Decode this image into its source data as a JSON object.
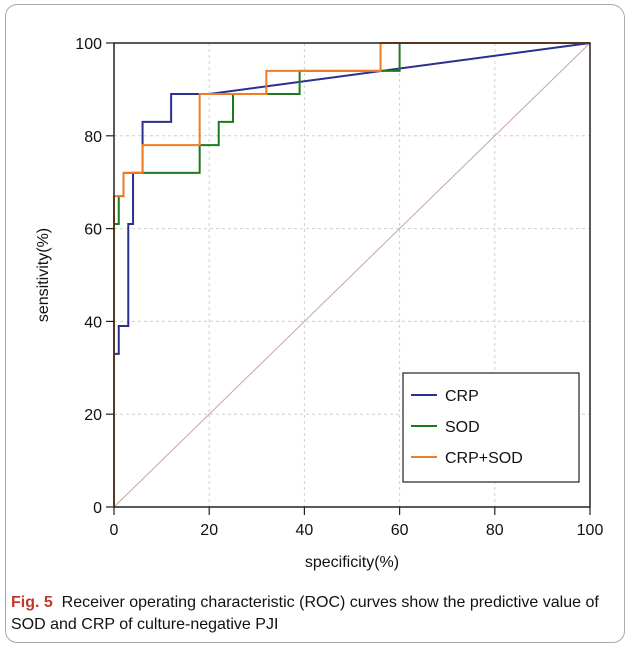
{
  "caption": {
    "label": "Fig. 5",
    "text": "Receiver operating characteristic (ROC) curves show the predictive value of SOD and CRP of culture-negative PJI"
  },
  "chart_data": {
    "type": "line",
    "title": "",
    "xlabel": "specificity(%)",
    "ylabel": "sensitivity(%)",
    "xlim": [
      0,
      100
    ],
    "ylim": [
      0,
      100
    ],
    "xticks": [
      "0",
      "20",
      "40",
      "60",
      "80",
      "100"
    ],
    "yticks": [
      "0",
      "20",
      "40",
      "60",
      "80",
      "100"
    ],
    "grid": true,
    "legend_position": "bottom-right",
    "reference_line": {
      "x": [
        0,
        100
      ],
      "y": [
        0,
        100
      ],
      "color": "#c9a3a3"
    },
    "series": [
      {
        "name": "CRP",
        "color": "#2b2f8f",
        "x": [
          0,
          0,
          1,
          1,
          3,
          3,
          4,
          4,
          6,
          6,
          8,
          8,
          12,
          12,
          20,
          100
        ],
        "y": [
          0,
          33,
          33,
          39,
          39,
          61,
          61,
          72,
          72,
          83,
          83,
          83,
          83,
          89,
          89,
          100
        ]
      },
      {
        "name": "SOD",
        "color": "#1e7a1e",
        "x": [
          0,
          0,
          1,
          1,
          2,
          2,
          5,
          5,
          18,
          18,
          20,
          20,
          22,
          22,
          25,
          25,
          30,
          30,
          39,
          39,
          60,
          60,
          100
        ],
        "y": [
          0,
          61,
          61,
          67,
          67,
          72,
          72,
          72,
          72,
          78,
          78,
          78,
          78,
          83,
          83,
          89,
          89,
          89,
          89,
          94,
          94,
          100,
          100
        ]
      },
      {
        "name": "CRP+SOD",
        "color": "#f07c24",
        "x": [
          0,
          0,
          2,
          2,
          6,
          6,
          18,
          18,
          32,
          32,
          56,
          56,
          100
        ],
        "y": [
          0,
          67,
          67,
          72,
          72,
          78,
          78,
          89,
          89,
          94,
          94,
          100,
          100
        ]
      }
    ]
  }
}
